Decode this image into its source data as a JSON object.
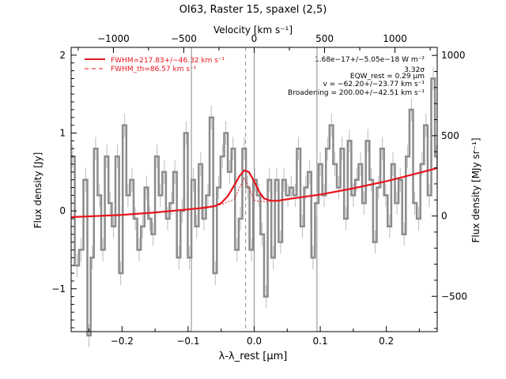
{
  "chart_data": {
    "type": "line",
    "title": "OI63, Raster 15, spaxel (2,5)",
    "xlabel": "λ-λ_rest [µm]",
    "ylabel": "Flux density [Jy]",
    "top_xlabel": "Velocity [km s⁻¹]",
    "right_ylabel": "Flux density [MJy sr⁻¹]",
    "xlim": [
      -0.277,
      0.277
    ],
    "ylim": [
      -1.55,
      2.1
    ],
    "x_ticks": [
      -0.2,
      -0.1,
      0.0,
      0.1,
      0.2
    ],
    "x_tick_labels": [
      "−0.2",
      "−0.1",
      "0.0",
      "0.1",
      "0.2"
    ],
    "y_ticks": [
      -1,
      0,
      1,
      2
    ],
    "y_tick_labels": [
      "−1",
      "0",
      "1",
      "2"
    ],
    "top_ticks": [
      -1000,
      -500,
      0,
      500,
      1000
    ],
    "top_tick_labels": [
      "−1000",
      "−500",
      "0",
      "500",
      "1000"
    ],
    "right_ticks": [
      -500,
      0,
      500,
      1000
    ],
    "right_tick_labels": [
      "−500",
      "0",
      "500",
      "1000"
    ],
    "vertical_lines": [
      -0.095,
      0.0,
      0.095
    ],
    "rest_line": -0.013,
    "legend": [
      {
        "label": "FWHM=217.83+/−46.32 km s⁻¹",
        "style": "solid",
        "color": "#e8141c"
      },
      {
        "label": "FWHM_th=86.57 km s⁻¹",
        "style": "dashed",
        "color": "#e8141c"
      }
    ],
    "annotations": [
      "1.68e−17+/−5.05e−18 W m⁻²",
      "3.32σ",
      "EQW_rest = 0.29 µm",
      "v = −62.20+/−23.77 km s⁻¹",
      "Broadening = 200.00+/−42.51 km s⁻¹"
    ],
    "series": [
      {
        "name": "data",
        "color": "#808080",
        "x": [
          -0.275,
          -0.268,
          -0.262,
          -0.255,
          -0.25,
          -0.245,
          -0.24,
          -0.234,
          -0.229,
          -0.223,
          -0.218,
          -0.213,
          -0.207,
          -0.202,
          -0.196,
          -0.191,
          -0.185,
          -0.18,
          -0.174,
          -0.169,
          -0.163,
          -0.158,
          -0.153,
          -0.147,
          -0.142,
          -0.136,
          -0.131,
          -0.125,
          -0.12,
          -0.114,
          -0.109,
          -0.103,
          -0.098,
          -0.092,
          -0.087,
          -0.081,
          -0.076,
          -0.07,
          -0.065,
          -0.059,
          -0.054,
          -0.048,
          -0.043,
          -0.037,
          -0.032,
          -0.026,
          -0.021,
          -0.015,
          -0.01,
          -0.004,
          0.001,
          0.007,
          0.012,
          0.018,
          0.023,
          0.029,
          0.034,
          0.04,
          0.045,
          0.051,
          0.056,
          0.062,
          0.067,
          0.073,
          0.078,
          0.084,
          0.089,
          0.095,
          0.1,
          0.106,
          0.111,
          0.117,
          0.122,
          0.128,
          0.133,
          0.139,
          0.144,
          0.15,
          0.155,
          0.161,
          0.166,
          0.172,
          0.177,
          0.183,
          0.188,
          0.194,
          0.199,
          0.205,
          0.21,
          0.216,
          0.221,
          0.227,
          0.232,
          0.238,
          0.243,
          0.249,
          0.254,
          0.26,
          0.265,
          0.271,
          0.276
        ],
        "y": [
          0.7,
          -0.7,
          -0.5,
          0.4,
          -1.6,
          -0.6,
          0.8,
          0.2,
          -0.5,
          0.7,
          0.1,
          -0.2,
          0.7,
          -0.8,
          1.1,
          0.2,
          0.4,
          -0.1,
          -0.5,
          -0.2,
          0.3,
          -0.1,
          -0.3,
          0.7,
          0.2,
          0.5,
          -0.1,
          0.1,
          0.5,
          -0.6,
          0.0,
          1.0,
          -0.6,
          0.4,
          -0.2,
          0.6,
          -0.1,
          0.2,
          1.2,
          -0.8,
          0.3,
          0.7,
          1.0,
          0.5,
          0.8,
          -0.5,
          -0.1,
          0.8,
          0.3,
          -0.5,
          0.4,
          0.2,
          -0.3,
          -1.1,
          0.4,
          -0.6,
          0.4,
          -0.4,
          0.4,
          0.2,
          0.3,
          0.2,
          0.8,
          -0.2,
          0.3,
          0.5,
          -0.6,
          0.1,
          0.6,
          0.2,
          0.8,
          1.1,
          0.6,
          0.3,
          0.8,
          -0.1,
          0.9,
          0.2,
          0.4,
          0.6,
          0.1,
          0.9,
          0.4,
          -0.4,
          0.3,
          0.8,
          0.2,
          -0.2,
          0.6,
          0.1,
          0.4,
          -0.3,
          0.7,
          1.3,
          0.1,
          -0.1,
          0.6,
          1.1,
          0.2,
          1.7,
          0.7
        ]
      },
      {
        "name": "fit",
        "color": "#e8141c",
        "x": [
          -0.277,
          -0.25,
          -0.2,
          -0.15,
          -0.1,
          -0.075,
          -0.06,
          -0.05,
          -0.04,
          -0.03,
          -0.022,
          -0.015,
          -0.008,
          0.0,
          0.008,
          0.015,
          0.025,
          0.035,
          0.05,
          0.1,
          0.15,
          0.2,
          0.25,
          0.277
        ],
        "y": [
          -0.08,
          -0.07,
          -0.05,
          -0.02,
          0.02,
          0.04,
          0.06,
          0.1,
          0.19,
          0.33,
          0.45,
          0.52,
          0.5,
          0.38,
          0.24,
          0.16,
          0.13,
          0.13,
          0.15,
          0.21,
          0.29,
          0.38,
          0.49,
          0.55
        ]
      },
      {
        "name": "thermal",
        "color": "#e8141c",
        "x": [
          -0.277,
          -0.2,
          -0.1,
          -0.05,
          -0.03,
          -0.022,
          -0.015,
          -0.008,
          0.0,
          0.008,
          0.02,
          0.05,
          0.1,
          0.2,
          0.277
        ],
        "y": [
          -0.08,
          -0.05,
          0.02,
          0.08,
          0.15,
          0.3,
          0.42,
          0.3,
          0.14,
          0.12,
          0.12,
          0.15,
          0.21,
          0.38,
          0.55
        ]
      }
    ]
  }
}
